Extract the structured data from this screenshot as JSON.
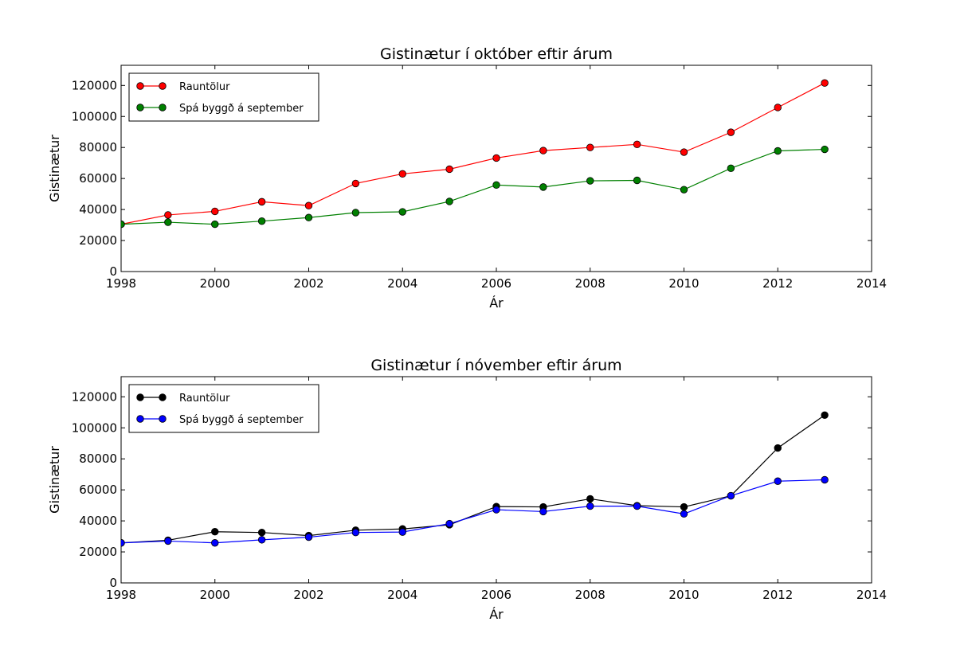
{
  "chart_data": [
    {
      "type": "line",
      "title": "Gistinætur í október eftir árum",
      "xlabel": "Ár",
      "ylabel": "Gistinætur",
      "xlim": [
        1998,
        2014
      ],
      "ylim": [
        0,
        133000
      ],
      "xticks": [
        1998,
        2000,
        2002,
        2004,
        2006,
        2008,
        2010,
        2012,
        2014
      ],
      "yticks": [
        0,
        20000,
        40000,
        60000,
        80000,
        100000,
        120000
      ],
      "grid": false,
      "legend_position": "top-left",
      "x": [
        1998,
        1999,
        2000,
        2001,
        2002,
        2003,
        2004,
        2005,
        2006,
        2007,
        2008,
        2009,
        2010,
        2011,
        2012,
        2013
      ],
      "series": [
        {
          "name": "Rauntölur",
          "color": "#ff0000",
          "values": [
            30500,
            36500,
            38800,
            45000,
            42500,
            56800,
            63000,
            66000,
            73200,
            78000,
            80000,
            82000,
            77000,
            89800,
            105800,
            121600
          ]
        },
        {
          "name": "Spá byggð á september",
          "color": "#008000",
          "values": [
            30500,
            31800,
            30500,
            32500,
            34800,
            38000,
            38500,
            45200,
            55800,
            54500,
            58500,
            58800,
            52800,
            66600,
            77800,
            78800
          ]
        }
      ]
    },
    {
      "type": "line",
      "title": "Gistinætur í nóvember eftir árum",
      "xlabel": "Ár",
      "ylabel": "Gistinætur",
      "xlim": [
        1998,
        2014
      ],
      "ylim": [
        0,
        133000
      ],
      "xticks": [
        1998,
        2000,
        2002,
        2004,
        2006,
        2008,
        2010,
        2012,
        2014
      ],
      "yticks": [
        0,
        20000,
        40000,
        60000,
        80000,
        100000,
        120000
      ],
      "grid": false,
      "legend_position": "top-left",
      "x": [
        1998,
        1999,
        2000,
        2001,
        2002,
        2003,
        2004,
        2005,
        2006,
        2007,
        2008,
        2009,
        2010,
        2011,
        2012,
        2013
      ],
      "series": [
        {
          "name": "Rauntölur",
          "color": "#000000",
          "values": [
            25800,
            27500,
            33000,
            32500,
            30500,
            34000,
            34800,
            37500,
            49200,
            49000,
            54200,
            49800,
            49000,
            56200,
            87000,
            108200
          ]
        },
        {
          "name": "Spá byggð á september",
          "color": "#0000ff",
          "values": [
            25800,
            27000,
            25800,
            27800,
            29500,
            32500,
            32800,
            38200,
            47200,
            46000,
            49500,
            49500,
            44500,
            56200,
            65600,
            66500
          ]
        }
      ]
    }
  ]
}
